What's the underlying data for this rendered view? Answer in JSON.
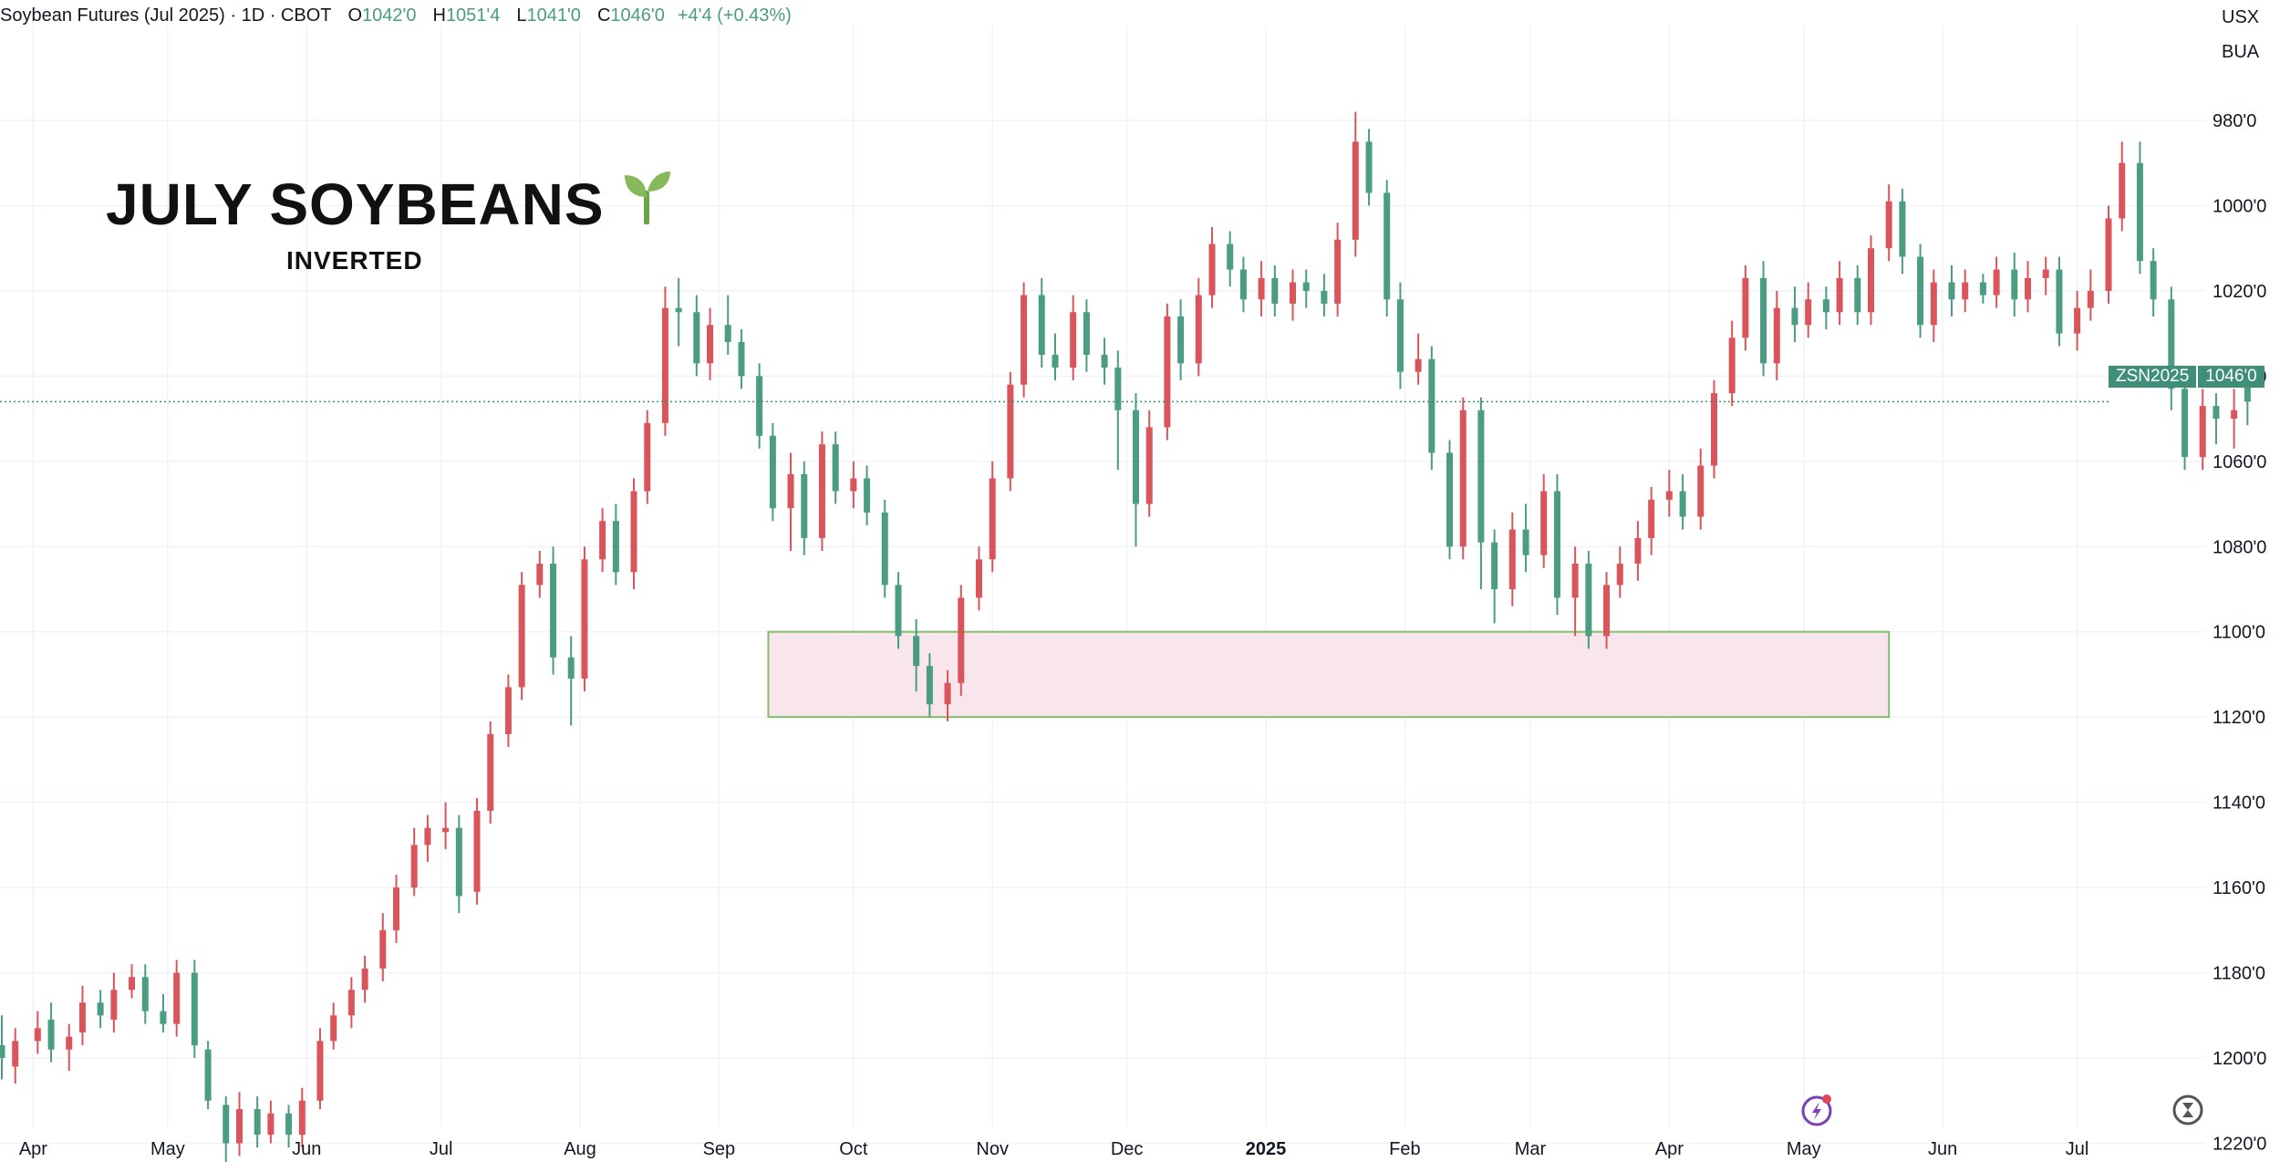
{
  "header": {
    "symbol_label": "Soybean Futures (Jul 2025) · 1D · CBOT",
    "open_key": "O",
    "open": "1042'0",
    "high_key": "H",
    "high": "1051'4",
    "low_key": "L",
    "low": "1041'0",
    "close_key": "C",
    "close": "1046'0",
    "change": "+4'4 (+0.43%)"
  },
  "units": {
    "currency": "USX",
    "unit": "BUA"
  },
  "overlay": {
    "title": "JULY SOYBEANS",
    "subtitle": "INVERTED",
    "title_icon": "sprout-icon"
  },
  "price_tag": {
    "symbol": "ZSN2025",
    "price": "1046'0"
  },
  "icons": {
    "bottom_center": "lightning-icon",
    "bottom_right": "hourglass-icon"
  },
  "colors": {
    "up": "#4a9c83",
    "down": "#d9545b",
    "zone_fill": "#f9e6ed",
    "zone_border": "#7fbf6a",
    "last_price": "#3f8f78"
  },
  "chart_data": {
    "type": "candlestick",
    "inverted": true,
    "ylim": [
      1228,
      970
    ],
    "y_ticks": [
      "980'0",
      "1000'0",
      "1020'0",
      "1040'0",
      "1060'0",
      "1080'0",
      "1100'0",
      "1120'0",
      "1140'0",
      "1160'0",
      "1180'0",
      "1200'0",
      "1220'0"
    ],
    "y_tick_values": [
      980,
      1000,
      1020,
      1040,
      1060,
      1080,
      1100,
      1120,
      1140,
      1160,
      1180,
      1200,
      1220
    ],
    "x_ticks": [
      "Apr",
      "May",
      "Jun",
      "Jul",
      "Aug",
      "Sep",
      "Oct",
      "Nov",
      "Dec",
      "2025",
      "Feb",
      "Mar",
      "Apr",
      "May",
      "Jun",
      "Jul"
    ],
    "x_tick_bold": [
      false,
      false,
      false,
      false,
      false,
      false,
      false,
      false,
      false,
      true,
      false,
      false,
      false,
      false,
      false,
      false
    ],
    "x_tick_dates": [
      "2024-04-01",
      "2024-05-01",
      "2024-06-01",
      "2024-07-01",
      "2024-08-01",
      "2024-09-01",
      "2024-10-01",
      "2024-11-01",
      "2024-12-01",
      "2025-01-01",
      "2025-02-01",
      "2025-03-01",
      "2025-04-01",
      "2025-05-01",
      "2025-06-01",
      "2025-07-01"
    ],
    "last_price": 1046,
    "zone": {
      "from": "2024-09-12",
      "to": "2025-05-20",
      "y_top": 1100,
      "y_bottom": 1120
    },
    "candles": [
      [
        "2024-03-25",
        1197,
        1200,
        1190,
        1205
      ],
      [
        "2024-03-28",
        1202,
        1196,
        1193,
        1206
      ],
      [
        "2024-04-02",
        1196,
        1193,
        1189,
        1199
      ],
      [
        "2024-04-05",
        1191,
        1198,
        1187,
        1201
      ],
      [
        "2024-04-09",
        1198,
        1195,
        1192,
        1203
      ],
      [
        "2024-04-12",
        1194,
        1187,
        1183,
        1197
      ],
      [
        "2024-04-16",
        1187,
        1190,
        1184,
        1193
      ],
      [
        "2024-04-19",
        1191,
        1184,
        1180,
        1194
      ],
      [
        "2024-04-23",
        1184,
        1181,
        1178,
        1186
      ],
      [
        "2024-04-26",
        1181,
        1189,
        1178,
        1192
      ],
      [
        "2024-04-30",
        1189,
        1192,
        1185,
        1194
      ],
      [
        "2024-05-03",
        1192,
        1180,
        1177,
        1195
      ],
      [
        "2024-05-07",
        1180,
        1197,
        1177,
        1200
      ],
      [
        "2024-05-10",
        1198,
        1210,
        1196,
        1212
      ],
      [
        "2024-05-14",
        1211,
        1220,
        1209,
        1226
      ],
      [
        "2024-05-17",
        1220,
        1212,
        1208,
        1223
      ],
      [
        "2024-05-21",
        1212,
        1218,
        1209,
        1221
      ],
      [
        "2024-05-24",
        1218,
        1213,
        1210,
        1220
      ],
      [
        "2024-05-28",
        1213,
        1218,
        1211,
        1221
      ],
      [
        "2024-05-31",
        1218,
        1210,
        1207,
        1221
      ],
      [
        "2024-06-04",
        1210,
        1196,
        1193,
        1212
      ],
      [
        "2024-06-07",
        1196,
        1190,
        1187,
        1198
      ],
      [
        "2024-06-11",
        1190,
        1184,
        1181,
        1193
      ],
      [
        "2024-06-14",
        1184,
        1179,
        1176,
        1187
      ],
      [
        "2024-06-18",
        1179,
        1170,
        1166,
        1182
      ],
      [
        "2024-06-21",
        1170,
        1160,
        1157,
        1173
      ],
      [
        "2024-06-25",
        1160,
        1150,
        1146,
        1162
      ],
      [
        "2024-06-28",
        1150,
        1146,
        1143,
        1154
      ],
      [
        "2024-07-02",
        1147,
        1146,
        1140,
        1151
      ],
      [
        "2024-07-05",
        1146,
        1162,
        1143,
        1166
      ],
      [
        "2024-07-09",
        1161,
        1142,
        1139,
        1164
      ],
      [
        "2024-07-12",
        1142,
        1124,
        1121,
        1145
      ],
      [
        "2024-07-16",
        1124,
        1113,
        1110,
        1127
      ],
      [
        "2024-07-19",
        1113,
        1089,
        1086,
        1116
      ],
      [
        "2024-07-23",
        1089,
        1084,
        1081,
        1092
      ],
      [
        "2024-07-26",
        1084,
        1106,
        1080,
        1110
      ],
      [
        "2024-07-30",
        1106,
        1111,
        1101,
        1122
      ],
      [
        "2024-08-02",
        1111,
        1083,
        1080,
        1114
      ],
      [
        "2024-08-06",
        1083,
        1074,
        1071,
        1086
      ],
      [
        "2024-08-09",
        1074,
        1086,
        1070,
        1089
      ],
      [
        "2024-08-13",
        1086,
        1067,
        1064,
        1090
      ],
      [
        "2024-08-16",
        1067,
        1051,
        1048,
        1070
      ],
      [
        "2024-08-20",
        1051,
        1024,
        1019,
        1054
      ],
      [
        "2024-08-23",
        1024,
        1025,
        1017,
        1033
      ],
      [
        "2024-08-27",
        1025,
        1037,
        1021,
        1040
      ],
      [
        "2024-08-30",
        1037,
        1028,
        1024,
        1041
      ],
      [
        "2024-09-03",
        1028,
        1032,
        1021,
        1035
      ],
      [
        "2024-09-06",
        1032,
        1040,
        1029,
        1043
      ],
      [
        "2024-09-10",
        1040,
        1054,
        1037,
        1057
      ],
      [
        "2024-09-13",
        1054,
        1071,
        1051,
        1074
      ],
      [
        "2024-09-17",
        1071,
        1063,
        1058,
        1081
      ],
      [
        "2024-09-20",
        1063,
        1078,
        1060,
        1082
      ],
      [
        "2024-09-24",
        1078,
        1056,
        1053,
        1081
      ],
      [
        "2024-09-27",
        1056,
        1067,
        1053,
        1070
      ],
      [
        "2024-10-01",
        1067,
        1064,
        1060,
        1071
      ],
      [
        "2024-10-04",
        1064,
        1072,
        1061,
        1075
      ],
      [
        "2024-10-08",
        1072,
        1089,
        1069,
        1092
      ],
      [
        "2024-10-11",
        1089,
        1101,
        1086,
        1104
      ],
      [
        "2024-10-15",
        1101,
        1108,
        1097,
        1114
      ],
      [
        "2024-10-18",
        1108,
        1117,
        1105,
        1120
      ],
      [
        "2024-10-22",
        1117,
        1112,
        1109,
        1121
      ],
      [
        "2024-10-25",
        1112,
        1092,
        1089,
        1115
      ],
      [
        "2024-10-29",
        1092,
        1083,
        1080,
        1095
      ],
      [
        "2024-11-01",
        1083,
        1064,
        1060,
        1086
      ],
      [
        "2024-11-05",
        1064,
        1042,
        1039,
        1067
      ],
      [
        "2024-11-08",
        1042,
        1021,
        1018,
        1045
      ],
      [
        "2024-11-12",
        1021,
        1035,
        1017,
        1038
      ],
      [
        "2024-11-15",
        1035,
        1038,
        1030,
        1041
      ],
      [
        "2024-11-19",
        1038,
        1025,
        1021,
        1041
      ],
      [
        "2024-11-22",
        1025,
        1035,
        1022,
        1039
      ],
      [
        "2024-11-26",
        1035,
        1038,
        1031,
        1042
      ],
      [
        "2024-11-29",
        1038,
        1048,
        1034,
        1062
      ],
      [
        "2024-12-03",
        1048,
        1070,
        1044,
        1080
      ],
      [
        "2024-12-06",
        1070,
        1052,
        1048,
        1073
      ],
      [
        "2024-12-10",
        1052,
        1026,
        1023,
        1055
      ],
      [
        "2024-12-13",
        1026,
        1037,
        1022,
        1041
      ],
      [
        "2024-12-17",
        1037,
        1021,
        1017,
        1040
      ],
      [
        "2024-12-20",
        1021,
        1009,
        1005,
        1024
      ],
      [
        "2024-12-24",
        1009,
        1015,
        1006,
        1019
      ],
      [
        "2024-12-27",
        1015,
        1022,
        1012,
        1025
      ],
      [
        "2024-12-31",
        1022,
        1017,
        1013,
        1026
      ],
      [
        "2025-01-03",
        1017,
        1023,
        1014,
        1026
      ],
      [
        "2025-01-07",
        1023,
        1018,
        1015,
        1027
      ],
      [
        "2025-01-10",
        1018,
        1020,
        1015,
        1024
      ],
      [
        "2025-01-14",
        1020,
        1023,
        1016,
        1026
      ],
      [
        "2025-01-17",
        1023,
        1008,
        1004,
        1026
      ],
      [
        "2025-01-21",
        1008,
        985,
        978,
        1012
      ],
      [
        "2025-01-24",
        985,
        997,
        982,
        1000
      ],
      [
        "2025-01-28",
        997,
        1022,
        994,
        1026
      ],
      [
        "2025-01-31",
        1022,
        1039,
        1018,
        1043
      ],
      [
        "2025-02-04",
        1039,
        1036,
        1030,
        1042
      ],
      [
        "2025-02-07",
        1036,
        1058,
        1033,
        1062
      ],
      [
        "2025-02-11",
        1058,
        1080,
        1055,
        1083
      ],
      [
        "2025-02-14",
        1080,
        1048,
        1045,
        1083
      ],
      [
        "2025-02-18",
        1048,
        1079,
        1045,
        1090
      ],
      [
        "2025-02-21",
        1079,
        1090,
        1076,
        1098
      ],
      [
        "2025-02-25",
        1090,
        1076,
        1072,
        1094
      ],
      [
        "2025-02-28",
        1076,
        1082,
        1070,
        1086
      ],
      [
        "2025-03-04",
        1082,
        1067,
        1063,
        1085
      ],
      [
        "2025-03-07",
        1067,
        1092,
        1063,
        1096
      ],
      [
        "2025-03-11",
        1092,
        1084,
        1080,
        1101
      ],
      [
        "2025-03-14",
        1084,
        1101,
        1081,
        1104
      ],
      [
        "2025-03-18",
        1101,
        1089,
        1086,
        1104
      ],
      [
        "2025-03-21",
        1089,
        1084,
        1080,
        1092
      ],
      [
        "2025-03-25",
        1084,
        1078,
        1074,
        1088
      ],
      [
        "2025-03-28",
        1078,
        1069,
        1066,
        1082
      ],
      [
        "2025-04-01",
        1069,
        1067,
        1062,
        1073
      ],
      [
        "2025-04-04",
        1067,
        1073,
        1063,
        1076
      ],
      [
        "2025-04-08",
        1073,
        1061,
        1057,
        1076
      ],
      [
        "2025-04-11",
        1061,
        1044,
        1041,
        1064
      ],
      [
        "2025-04-15",
        1044,
        1031,
        1027,
        1047
      ],
      [
        "2025-04-18",
        1031,
        1017,
        1014,
        1034
      ],
      [
        "2025-04-22",
        1017,
        1037,
        1013,
        1040
      ],
      [
        "2025-04-25",
        1037,
        1024,
        1020,
        1041
      ],
      [
        "2025-04-29",
        1024,
        1028,
        1019,
        1032
      ],
      [
        "2025-05-02",
        1028,
        1022,
        1018,
        1031
      ],
      [
        "2025-05-06",
        1022,
        1025,
        1019,
        1029
      ],
      [
        "2025-05-09",
        1025,
        1017,
        1013,
        1028
      ],
      [
        "2025-05-13",
        1017,
        1025,
        1014,
        1028
      ],
      [
        "2025-05-16",
        1025,
        1010,
        1007,
        1028
      ],
      [
        "2025-05-20",
        1010,
        999,
        995,
        1013
      ],
      [
        "2025-05-23",
        999,
        1012,
        996,
        1016
      ],
      [
        "2025-05-27",
        1012,
        1028,
        1009,
        1031
      ],
      [
        "2025-05-30",
        1028,
        1018,
        1015,
        1032
      ],
      [
        "2025-06-03",
        1018,
        1022,
        1014,
        1026
      ],
      [
        "2025-06-06",
        1022,
        1018,
        1015,
        1025
      ],
      [
        "2025-06-10",
        1018,
        1021,
        1016,
        1023
      ],
      [
        "2025-06-13",
        1021,
        1015,
        1012,
        1024
      ],
      [
        "2025-06-17",
        1015,
        1022,
        1011,
        1026
      ],
      [
        "2025-06-20",
        1022,
        1017,
        1013,
        1025
      ],
      [
        "2025-06-24",
        1017,
        1015,
        1012,
        1021
      ],
      [
        "2025-06-27",
        1015,
        1030,
        1012,
        1033
      ],
      [
        "2025-07-01",
        1030,
        1024,
        1020,
        1034
      ],
      [
        "2025-07-04",
        1024,
        1020,
        1015,
        1027
      ],
      [
        "2025-07-08",
        1020,
        1003,
        1000,
        1023
      ],
      [
        "2025-07-11",
        1003,
        990,
        985,
        1006
      ],
      [
        "2025-07-15",
        990,
        1013,
        985,
        1016
      ],
      [
        "2025-07-18",
        1013,
        1022,
        1010,
        1026
      ],
      [
        "2025-07-22",
        1022,
        1043,
        1019,
        1048
      ],
      [
        "2025-07-25",
        1043,
        1059,
        1040,
        1062
      ],
      [
        "2025-07-29",
        1059,
        1047,
        1043,
        1062
      ],
      [
        "2025-08-01",
        1047,
        1050,
        1044,
        1056
      ],
      [
        "2025-08-05",
        1050,
        1048,
        1043,
        1057
      ],
      [
        "2025-08-08",
        1042,
        1046,
        1041,
        1051.5
      ]
    ]
  }
}
